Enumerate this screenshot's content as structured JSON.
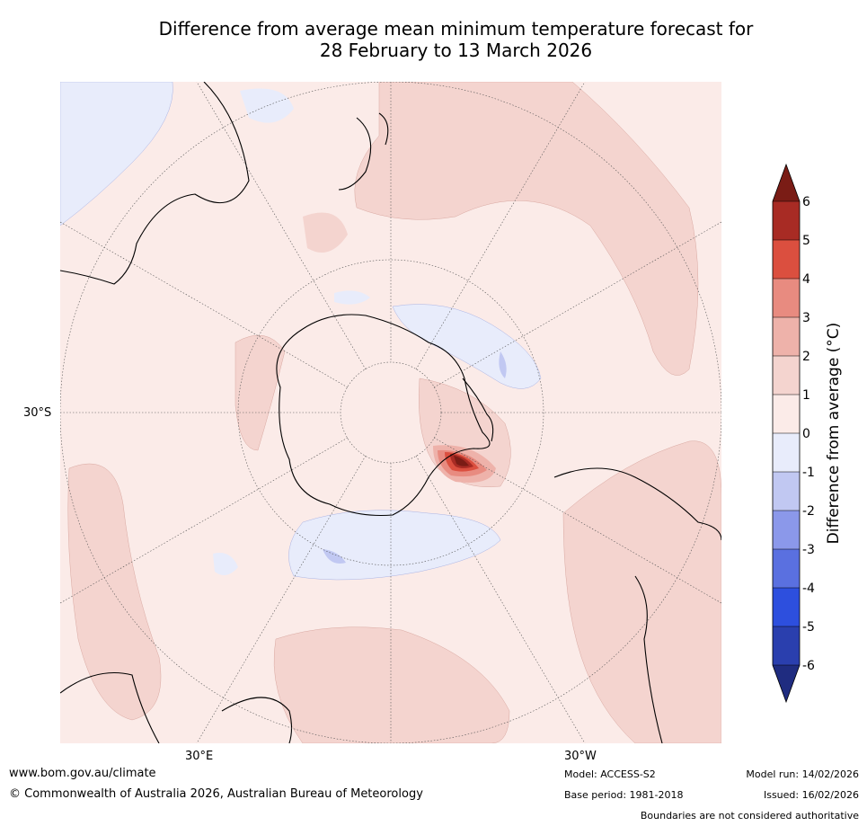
{
  "title": {
    "line1": "Difference from average mean minimum temperature forecast for",
    "line2": "28 February to 13 March 2026"
  },
  "map": {
    "lat_label": "30°S",
    "lon_labels": [
      "30°E",
      "30°W"
    ]
  },
  "colorbar": {
    "title": "Difference from average (°C)",
    "ticks": [
      "6",
      "5",
      "4",
      "3",
      "2",
      "1",
      "0",
      "-1",
      "-2",
      "-3",
      "-4",
      "-5",
      "-6"
    ],
    "colors": {
      "above6": "#7a1c15",
      "c5_6": "#a82b24",
      "c4_5": "#db4f3f",
      "c3_4": "#e88b80",
      "c2_3": "#eeb2aa",
      "c1_2": "#f4d4cf",
      "c0_1": "#fbebe8",
      "cm1_0": "#e8ecfb",
      "cm2_m1": "#c1c8f2",
      "cm3_m2": "#8b98ea",
      "cm4_m3": "#5a70e0",
      "cm5_m4": "#2d4fde",
      "cm6_m5": "#2a3fae",
      "below_m6": "#1f2c80"
    }
  },
  "footer": {
    "url": "www.bom.gov.au/climate",
    "copyright": "© Commonwealth of Australia 2026, Australian Bureau of Meteorology",
    "model": "Model: ACCESS-S2",
    "base_period": "Base period: 1981-2018",
    "model_run": "Model run: 14/02/2026",
    "issued": "Issued: 16/02/2026",
    "disclaimer": "Boundaries are not considered authoritative"
  }
}
